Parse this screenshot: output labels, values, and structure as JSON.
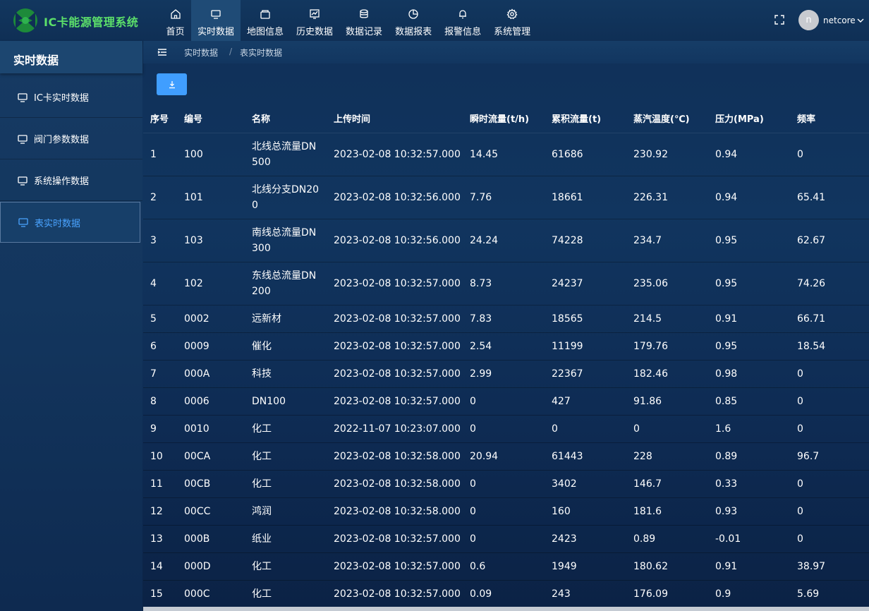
{
  "app": {
    "title": "IC卡能源管理系统"
  },
  "nav": {
    "items": [
      {
        "label": "首页",
        "icon": "home-icon"
      },
      {
        "label": "实时数据",
        "icon": "monitor-icon"
      },
      {
        "label": "地图信息",
        "icon": "map-icon"
      },
      {
        "label": "历史数据",
        "icon": "history-chart-icon"
      },
      {
        "label": "数据记录",
        "icon": "database-icon"
      },
      {
        "label": "数据报表",
        "icon": "pie-chart-icon"
      },
      {
        "label": "报警信息",
        "icon": "bell-icon"
      },
      {
        "label": "系统管理",
        "icon": "gear-icon"
      }
    ],
    "active_index": 1
  },
  "user": {
    "avatar_letter": "n",
    "name": "netcore"
  },
  "sidebar": {
    "title": "实时数据",
    "items": [
      {
        "label": "IC卡实时数据",
        "icon": "monitor-icon"
      },
      {
        "label": "阀门参数数据",
        "icon": "monitor-icon"
      },
      {
        "label": "系统操作数据",
        "icon": "monitor-icon"
      },
      {
        "label": "表实时数据",
        "icon": "monitor-icon"
      }
    ],
    "active_index": 3
  },
  "breadcrumb": {
    "level1": "实时数据",
    "separator": "/",
    "level2": "表实时数据"
  },
  "toolbar": {
    "download_icon": "download-icon"
  },
  "table": {
    "headers": {
      "seq": "序号",
      "code": "编号",
      "name": "名称",
      "time": "上传时间",
      "flow": "瞬时流量(t/h)",
      "total": "累积流量(t)",
      "temp": "蒸汽温度(℃)",
      "pressure": "压力(MPa)",
      "freq": "频率"
    },
    "rows": [
      {
        "seq": "1",
        "code": "100",
        "name": "北线总流量DN500",
        "time": "2023-02-08 10:32:57.000",
        "flow": "14.45",
        "total": "61686",
        "temp": "230.92",
        "pressure": "0.94",
        "freq": "0"
      },
      {
        "seq": "2",
        "code": "101",
        "name": "北线分支DN200",
        "time": "2023-02-08 10:32:56.000",
        "flow": "7.76",
        "total": "18661",
        "temp": "226.31",
        "pressure": "0.94",
        "freq": "65.41"
      },
      {
        "seq": "3",
        "code": "103",
        "name": "南线总流量DN300",
        "time": "2023-02-08 10:32:56.000",
        "flow": "24.24",
        "total": "74228",
        "temp": "234.7",
        "pressure": "0.95",
        "freq": "62.67"
      },
      {
        "seq": "4",
        "code": "102",
        "name": "东线总流量DN200",
        "time": "2023-02-08 10:32:57.000",
        "flow": "8.73",
        "total": "24237",
        "temp": "235.06",
        "pressure": "0.95",
        "freq": "74.26"
      },
      {
        "seq": "5",
        "code": "0002",
        "name": "远新材",
        "time": "2023-02-08 10:32:57.000",
        "flow": "7.83",
        "total": "18565",
        "temp": "214.5",
        "pressure": "0.91",
        "freq": "66.71"
      },
      {
        "seq": "6",
        "code": "0009",
        "name": "催化",
        "time": "2023-02-08 10:32:57.000",
        "flow": "2.54",
        "total": "11199",
        "temp": "179.76",
        "pressure": "0.95",
        "freq": "18.54"
      },
      {
        "seq": "7",
        "code": "000A",
        "name": "科技",
        "time": "2023-02-08 10:32:57.000",
        "flow": "2.99",
        "total": "22367",
        "temp": "182.46",
        "pressure": "0.98",
        "freq": "0"
      },
      {
        "seq": "8",
        "code": "0006",
        "name": "DN100",
        "time": "2023-02-08 10:32:57.000",
        "flow": "0",
        "total": "427",
        "temp": "91.86",
        "pressure": "0.85",
        "freq": "0"
      },
      {
        "seq": "9",
        "code": "0010",
        "name": "化工",
        "time": "2022-11-07 10:23:07.000",
        "flow": "0",
        "total": "0",
        "temp": "0",
        "pressure": "1.6",
        "freq": "0"
      },
      {
        "seq": "10",
        "code": "00CA",
        "name": "化工",
        "time": "2023-02-08 10:32:58.000",
        "flow": "20.94",
        "total": "61443",
        "temp": "228",
        "pressure": "0.89",
        "freq": "96.7"
      },
      {
        "seq": "11",
        "code": "00CB",
        "name": "化工",
        "time": "2023-02-08 10:32:58.000",
        "flow": "0",
        "total": "3402",
        "temp": "146.7",
        "pressure": "0.33",
        "freq": "0"
      },
      {
        "seq": "12",
        "code": "00CC",
        "name": "鸿润",
        "time": "2023-02-08 10:32:58.000",
        "flow": "0",
        "total": "160",
        "temp": "181.6",
        "pressure": "0.93",
        "freq": "0"
      },
      {
        "seq": "13",
        "code": "000B",
        "name": "纸业",
        "time": "2023-02-08 10:32:57.000",
        "flow": "0",
        "total": "2423",
        "temp": "0.89",
        "pressure": "-0.01",
        "freq": "0"
      },
      {
        "seq": "14",
        "code": "000D",
        "name": "化工",
        "time": "2023-02-08 10:32:57.000",
        "flow": "0.6",
        "total": "1949",
        "temp": "180.62",
        "pressure": "0.91",
        "freq": "38.97"
      },
      {
        "seq": "15",
        "code": "000C",
        "name": "化工",
        "time": "2023-02-08 10:32:57.000",
        "flow": "0.09",
        "total": "243",
        "temp": "176.09",
        "pressure": "0.9",
        "freq": "5.69"
      }
    ]
  },
  "colors": {
    "brand_green": "#5ce06a",
    "accent_blue": "#409eff",
    "active_link": "#4aa3ff",
    "background": "#11355f"
  }
}
